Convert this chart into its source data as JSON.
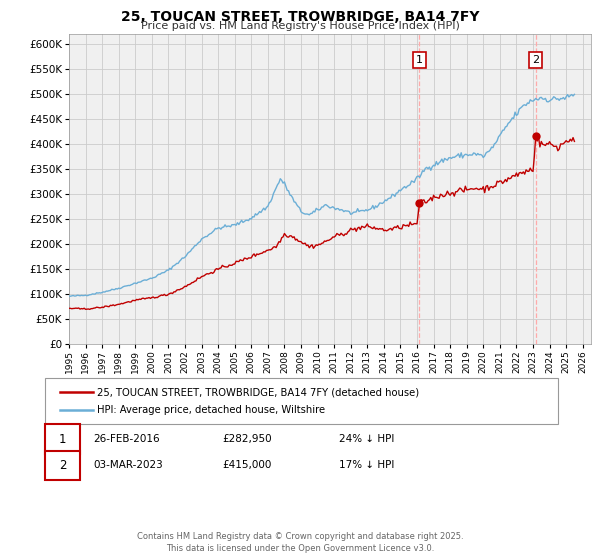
{
  "title": "25, TOUCAN STREET, TROWBRIDGE, BA14 7FY",
  "subtitle": "Price paid vs. HM Land Registry's House Price Index (HPI)",
  "ylim": [
    0,
    620000
  ],
  "xlim_start": 1995.0,
  "xlim_end": 2026.5,
  "yticks": [
    0,
    50000,
    100000,
    150000,
    200000,
    250000,
    300000,
    350000,
    400000,
    450000,
    500000,
    550000,
    600000
  ],
  "xtick_years": [
    1995,
    1996,
    1997,
    1998,
    1999,
    2000,
    2001,
    2002,
    2003,
    2004,
    2005,
    2006,
    2007,
    2008,
    2009,
    2010,
    2011,
    2012,
    2013,
    2014,
    2015,
    2016,
    2017,
    2018,
    2019,
    2020,
    2021,
    2022,
    2023,
    2024,
    2025,
    2026
  ],
  "sale1_x": 2016.14,
  "sale1_y": 282950,
  "sale1_label": "1",
  "sale1_date": "26-FEB-2016",
  "sale1_price": "£282,950",
  "sale1_hpi": "24% ↓ HPI",
  "sale2_x": 2023.17,
  "sale2_y": 415000,
  "sale2_label": "2",
  "sale2_date": "03-MAR-2023",
  "sale2_price": "£415,000",
  "sale2_hpi": "17% ↓ HPI",
  "hpi_color": "#6baed6",
  "price_color": "#c00000",
  "vline_color": "#ffaaaa",
  "grid_color": "#cccccc",
  "background_color": "#f0f0f0",
  "legend1": "25, TOUCAN STREET, TROWBRIDGE, BA14 7FY (detached house)",
  "legend2": "HPI: Average price, detached house, Wiltshire",
  "footer": "Contains HM Land Registry data © Crown copyright and database right 2025.\nThis data is licensed under the Open Government Licence v3.0."
}
